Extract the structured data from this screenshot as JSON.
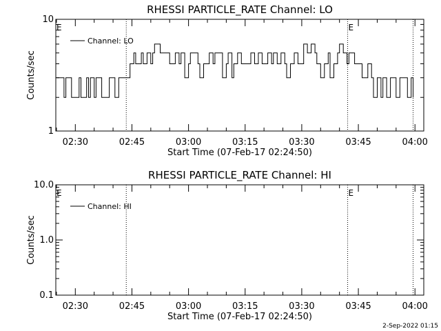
{
  "footer_text": "2-Sep-2022 01:15",
  "chart_data": [
    {
      "type": "line",
      "title": "RHESSI PARTICLE_RATE Channel: LO",
      "xlabel": "Start Time (07-Feb-17 02:24:50)",
      "ylabel": "Counts/sec",
      "yscale": "log",
      "ylim": [
        1,
        10
      ],
      "ytick_labels": [
        "1",
        "10"
      ],
      "xlim": [
        "02:24:50",
        "04:02:20"
      ],
      "xtick_labels": [
        "02:30",
        "02:45",
        "03:00",
        "03:15",
        "03:30",
        "03:45",
        "04:00"
      ],
      "event_marker_label": "E",
      "event_times": [
        "02:43:30",
        "03:42:10",
        "03:59:30"
      ],
      "legend": {
        "location": "top-left"
      },
      "series": [
        {
          "name": "Channel: LO",
          "segments": [
            {
              "t": [
                "02:25:00",
                "02:26:30",
                "02:27:00",
                "02:27:30",
                "02:28:30",
                "02:29:00",
                "02:30:00",
                "02:31:00",
                "02:31:30",
                "02:32:00",
                "02:33:00",
                "02:33:30",
                "02:34:00",
                "02:35:00",
                "02:35:30",
                "02:36:30",
                "02:37:00",
                "02:38:00",
                "02:39:00",
                "02:39:30",
                "02:40:30",
                "02:41:30",
                "02:42:30",
                "02:43:30",
                "02:44:30",
                "02:45:30",
                "02:46:00",
                "02:46:30",
                "02:47:30",
                "02:48:00",
                "02:49:00",
                "02:50:00",
                "02:50:30",
                "02:51:00",
                "02:52:30",
                "02:53:30",
                "02:54:00",
                "02:55:00",
                "02:56:00",
                "02:56:30",
                "02:57:30",
                "02:58:00",
                "02:59:00",
                "03:00:00",
                "03:00:30",
                "03:01:30",
                "03:02:30",
                "03:03:00",
                "03:04:00",
                "03:05:00",
                "03:05:30",
                "03:06:30",
                "03:07:00",
                "03:08:00",
                "03:09:00",
                "03:10:00",
                "03:10:30",
                "03:11:30",
                "03:12:00",
                "03:13:00",
                "03:14:00",
                "03:15:00",
                "03:16:00",
                "03:16:30",
                "03:17:30",
                "03:18:30",
                "03:19:30",
                "03:20:00",
                "03:21:00",
                "03:22:00",
                "03:22:30",
                "03:23:30",
                "03:24:30",
                "03:25:30",
                "03:26:00",
                "03:27:00",
                "03:28:00",
                "03:29:00",
                "03:30:00",
                "03:30:30",
                "03:31:30",
                "03:32:30",
                "03:33:30",
                "03:34:00",
                "03:35:00",
                "03:36:00",
                "03:37:00",
                "03:37:30",
                "03:38:30",
                "03:39:30",
                "03:40:00",
                "03:41:00",
                "03:42:00",
                "03:42:30",
                "03:43:30",
                "03:44:00",
                "03:45:00",
                "03:46:00",
                "03:46:30",
                "03:47:30",
                "03:48:30",
                "03:49:00",
                "03:50:00",
                "03:51:00",
                "03:51:30",
                "03:52:30",
                "03:53:30",
                "03:54:30",
                "03:55:00",
                "03:56:00",
                "03:57:00",
                "03:58:00",
                "03:59:00",
                "03:59:30"
              ],
              "y": [
                3,
                3,
                2,
                3,
                3,
                2,
                2,
                3,
                2,
                2,
                3,
                2,
                3,
                2,
                3,
                3,
                2,
                2,
                3,
                3,
                2,
                3,
                3,
                3,
                4,
                5,
                4,
                4,
                5,
                4,
                5,
                4,
                5,
                6,
                5,
                5,
                5,
                4,
                4,
                5,
                4,
                5,
                3,
                4,
                5,
                5,
                4,
                3,
                4,
                4,
                5,
                4,
                5,
                5,
                3,
                4,
                5,
                3,
                4,
                5,
                4,
                4,
                4,
                5,
                4,
                5,
                4,
                4,
                5,
                4,
                5,
                4,
                5,
                4,
                3,
                4,
                5,
                4,
                4,
                6,
                5,
                6,
                5,
                4,
                3,
                4,
                5,
                3,
                4,
                5,
                6,
                5,
                4,
                5,
                5,
                4,
                4,
                3,
                3,
                4,
                3,
                2,
                3,
                2,
                3,
                2,
                3,
                3,
                2,
                3,
                3,
                2,
                3,
                2
              ]
            }
          ]
        }
      ]
    },
    {
      "type": "line",
      "title": "RHESSI PARTICLE_RATE Channel: HI",
      "xlabel": "Start Time (07-Feb-17 02:24:50)",
      "ylabel": "Counts/sec",
      "yscale": "log",
      "ylim": [
        0.1,
        10
      ],
      "ytick_labels": [
        "0.1",
        "1.0",
        "10.0"
      ],
      "xlim": [
        "02:24:50",
        "04:02:20"
      ],
      "xtick_labels": [
        "02:30",
        "02:45",
        "03:00",
        "03:15",
        "03:30",
        "03:45",
        "04:00"
      ],
      "event_marker_label": "E",
      "event_times": [
        "02:43:30",
        "03:42:10",
        "03:59:30"
      ],
      "legend": {
        "location": "top-left"
      },
      "series": [
        {
          "name": "Channel: HI",
          "segments": []
        }
      ]
    }
  ]
}
